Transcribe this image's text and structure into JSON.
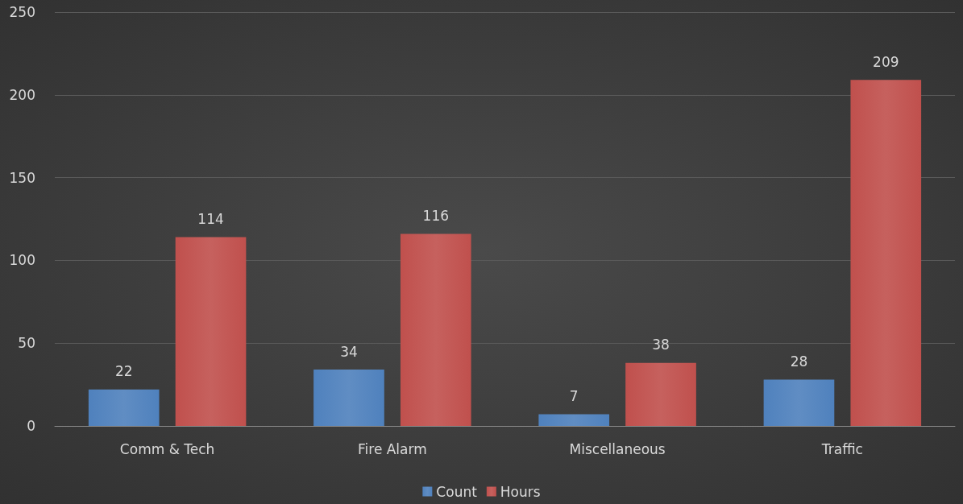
{
  "chart_data": {
    "type": "bar",
    "categories": [
      "Comm & Tech",
      "Fire Alarm",
      "Miscellaneous",
      "Traffic"
    ],
    "series": [
      {
        "name": "Count",
        "color": "#4f81bd",
        "values": [
          22,
          34,
          7,
          28
        ]
      },
      {
        "name": "Hours",
        "color": "#c0504d",
        "values": [
          114,
          116,
          38,
          209
        ]
      }
    ],
    "ylim": [
      0,
      250
    ],
    "yticks": [
      0,
      50,
      100,
      150,
      200,
      250
    ],
    "grid": "y",
    "legend": "bottom",
    "data_labels": true
  }
}
